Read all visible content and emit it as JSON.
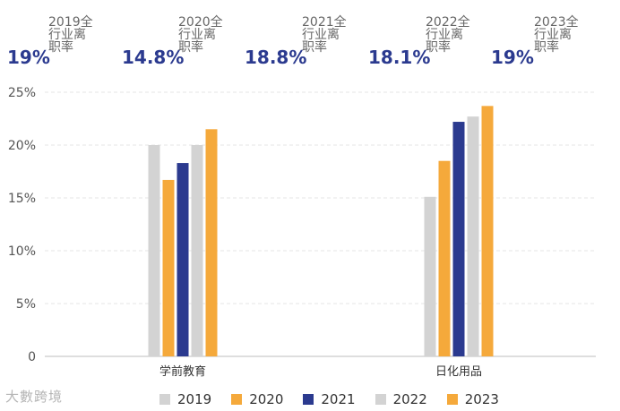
{
  "stats": [
    {
      "year_label": "2019全行业离职率",
      "value": "19%"
    },
    {
      "year_label": "2020全行业离职率",
      "value": "14.8%"
    },
    {
      "year_label": "2021全行业离职率",
      "value": "18.8%"
    },
    {
      "year_label": "2022全行业离职率",
      "value": "18.1%"
    },
    {
      "year_label": "2023全行业离职率",
      "value": "19%"
    }
  ],
  "watermark_logo": "大數跨境",
  "colors": {
    "s2019": "#d3d3d3",
    "s2020": "#f5a93b",
    "s2021": "#2b3a8f",
    "s2022": "#d3d3d3",
    "s2023": "#f5a93b",
    "stat_value": "#2b3a8f",
    "grid": "#e6e6e6"
  },
  "chart_data": {
    "type": "bar",
    "title": "",
    "xlabel": "",
    "ylabel": "",
    "categories": [
      "学前教育",
      "日化用品"
    ],
    "series": [
      {
        "name": "2019",
        "values": [
          20.0,
          15.1
        ]
      },
      {
        "name": "2020",
        "values": [
          16.7,
          18.5
        ]
      },
      {
        "name": "2021",
        "values": [
          18.3,
          22.2
        ]
      },
      {
        "name": "2022",
        "values": [
          20.0,
          22.7
        ]
      },
      {
        "name": "2023",
        "values": [
          21.5,
          23.7
        ]
      }
    ],
    "ylim": [
      0,
      25
    ],
    "yticks": [
      0,
      5,
      10,
      15,
      20,
      25
    ],
    "ytick_labels": [
      "0",
      "5%",
      "10%",
      "15%",
      "20%",
      "25%"
    ],
    "legend_position": "bottom",
    "grid": true
  }
}
